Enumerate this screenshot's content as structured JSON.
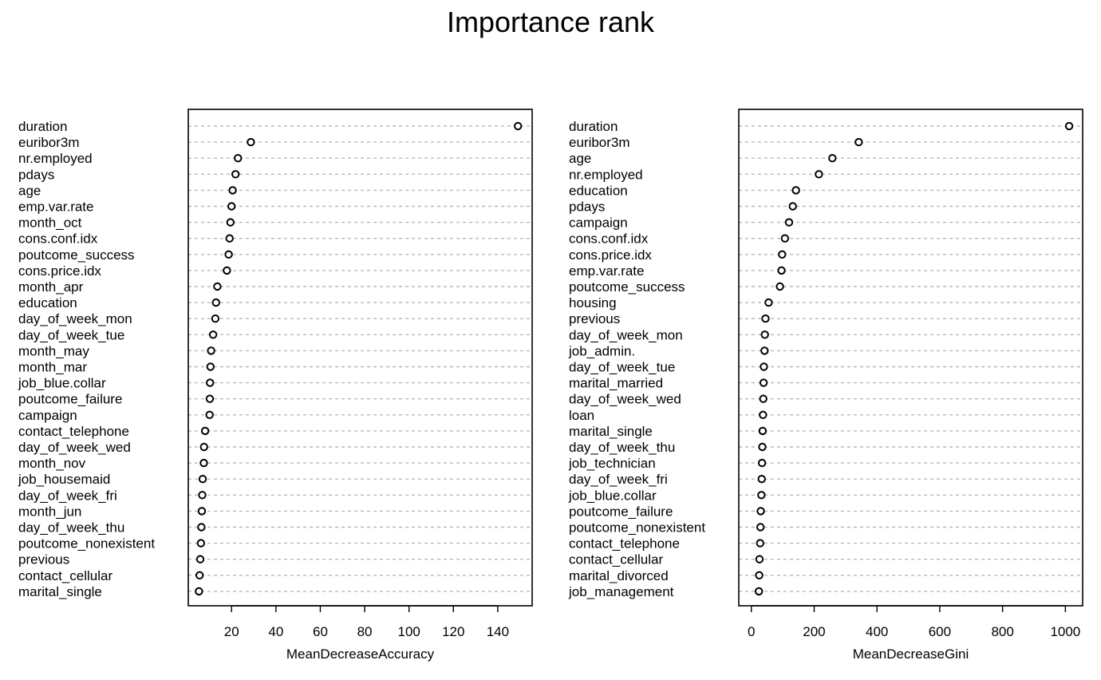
{
  "title": "Importance rank",
  "chart_data": [
    {
      "type": "scatter",
      "subtype": "dotchart",
      "xlabel": "MeanDecreaseAccuracy",
      "ylabel": "",
      "xlim": [
        0.5,
        155.5
      ],
      "xticks": [
        20,
        40,
        60,
        80,
        100,
        120,
        140
      ],
      "grid": "dashed horizontal",
      "legend": "none",
      "categories": [
        "duration",
        "euribor3m",
        "nr.employed",
        "pdays",
        "age",
        "emp.var.rate",
        "month_oct",
        "cons.conf.idx",
        "poutcome_success",
        "cons.price.idx",
        "month_apr",
        "education",
        "day_of_week_mon",
        "day_of_week_tue",
        "month_may",
        "month_mar",
        "job_blue.collar",
        "poutcome_failure",
        "campaign",
        "contact_telephone",
        "day_of_week_wed",
        "month_nov",
        "job_housemaid",
        "day_of_week_fri",
        "month_jun",
        "day_of_week_thu",
        "poutcome_nonexistent",
        "previous",
        "contact_cellular",
        "marital_single"
      ],
      "values": [
        149.1,
        28.7,
        22.9,
        21.8,
        20.5,
        20.0,
        19.5,
        19.1,
        18.7,
        17.9,
        13.6,
        13.0,
        12.7,
        11.7,
        10.8,
        10.5,
        10.3,
        10.2,
        10.1,
        8.1,
        7.6,
        7.5,
        7.0,
        6.8,
        6.6,
        6.4,
        6.2,
        5.9,
        5.6,
        5.3
      ]
    },
    {
      "type": "scatter",
      "subtype": "dotchart",
      "xlabel": "MeanDecreaseGini",
      "ylabel": "",
      "xlim": [
        -40,
        1055
      ],
      "xticks": [
        0,
        200,
        400,
        600,
        800,
        1000
      ],
      "grid": "dashed horizontal",
      "legend": "none",
      "categories": [
        "duration",
        "euribor3m",
        "age",
        "nr.employed",
        "education",
        "pdays",
        "campaign",
        "cons.conf.idx",
        "cons.price.idx",
        "emp.var.rate",
        "poutcome_success",
        "housing",
        "previous",
        "day_of_week_mon",
        "job_admin.",
        "day_of_week_tue",
        "marital_married",
        "day_of_week_wed",
        "loan",
        "marital_single",
        "day_of_week_thu",
        "job_technician",
        "day_of_week_fri",
        "job_blue.collar",
        "poutcome_failure",
        "poutcome_nonexistent",
        "contact_telephone",
        "contact_cellular",
        "marital_divorced",
        "job_management"
      ],
      "values": [
        1012,
        342,
        258,
        215,
        142,
        132,
        120,
        107,
        98,
        96,
        91,
        55,
        45,
        43,
        42,
        40,
        39,
        38,
        37,
        36,
        35,
        34,
        33,
        32,
        30,
        29,
        28,
        26,
        25,
        24
      ]
    }
  ]
}
